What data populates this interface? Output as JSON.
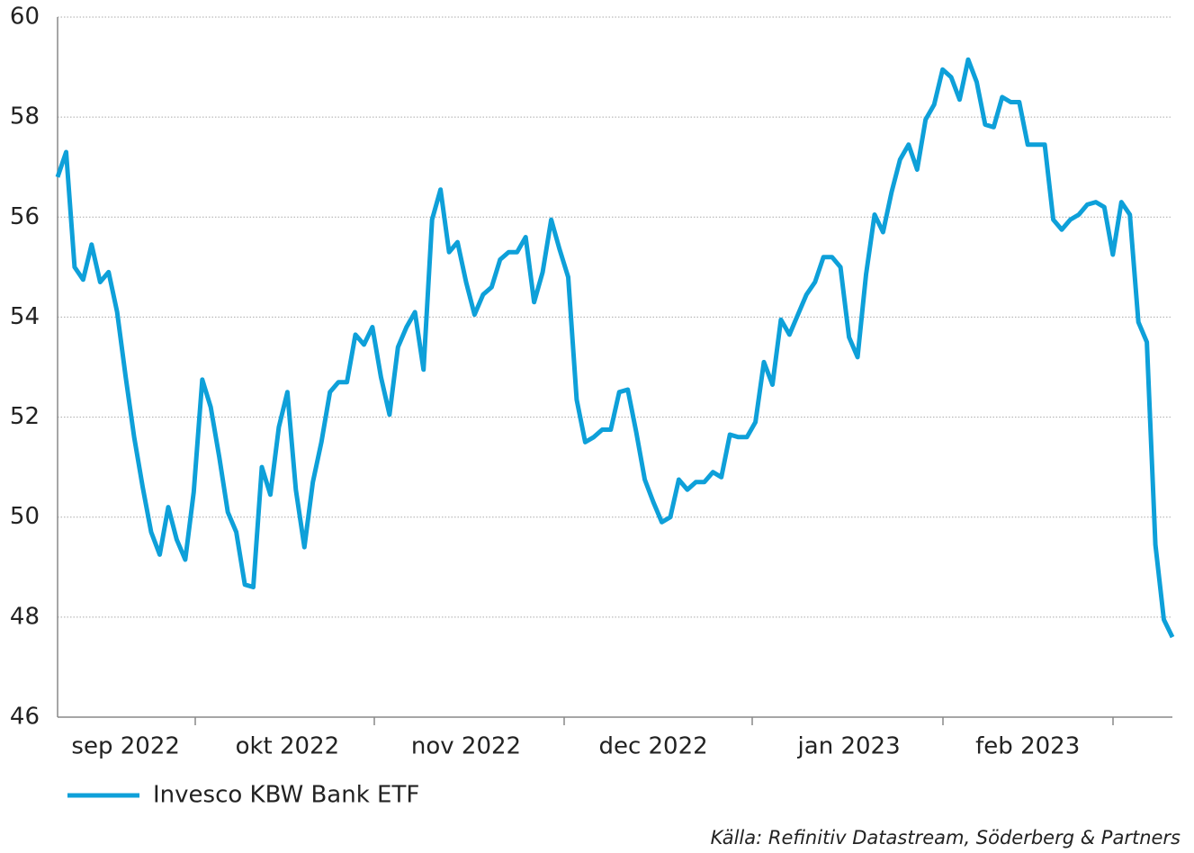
{
  "chart_data": {
    "type": "line",
    "categories": [
      null,
      null,
      null,
      null,
      null,
      null,
      null,
      null,
      "sep 2022",
      null,
      null,
      null,
      null,
      null,
      null,
      null,
      null,
      null,
      null,
      null,
      null,
      null,
      null,
      null,
      null,
      null,
      null,
      "okt 2022",
      null,
      null,
      null,
      null,
      null,
      null,
      null,
      null,
      null,
      null,
      null,
      null,
      null,
      null,
      null,
      null,
      null,
      null,
      null,
      null,
      "nov 2022",
      null,
      null,
      null,
      null,
      null,
      null,
      null,
      null,
      null,
      null,
      null,
      null,
      null,
      null,
      null,
      null,
      null,
      null,
      null,
      null,
      null,
      "dec 2022",
      null,
      null,
      null,
      null,
      null,
      null,
      null,
      null,
      null,
      null,
      null,
      null,
      null,
      null,
      null,
      null,
      null,
      null,
      null,
      null,
      null,
      null,
      "jan 2023",
      null,
      null,
      null,
      null,
      null,
      null,
      null,
      null,
      null,
      null,
      null,
      null,
      null,
      null,
      null,
      null,
      null,
      null,
      null,
      null,
      "feb 2023",
      null,
      null,
      null,
      null,
      null,
      null,
      null,
      null,
      null,
      null,
      null,
      null,
      null,
      null,
      null,
      null,
      null
    ],
    "series": [
      {
        "name": "Invesco KBW Bank ETF",
        "color": "#0ea0d9",
        "values": [
          56.8,
          57.3,
          55.0,
          54.75,
          55.45,
          54.7,
          54.9,
          54.1,
          52.8,
          51.6,
          50.6,
          49.7,
          49.25,
          50.2,
          49.55,
          49.15,
          50.5,
          52.75,
          52.2,
          51.2,
          50.1,
          49.7,
          48.65,
          48.6,
          51.0,
          50.45,
          51.8,
          52.5,
          50.55,
          49.4,
          50.7,
          51.5,
          52.5,
          52.7,
          52.7,
          53.65,
          53.45,
          53.8,
          52.8,
          52.05,
          53.4,
          53.8,
          54.1,
          52.95,
          55.95,
          56.55,
          55.3,
          55.5,
          54.7,
          54.05,
          54.45,
          54.6,
          55.15,
          55.3,
          55.3,
          55.6,
          54.3,
          54.9,
          55.95,
          55.35,
          54.8,
          52.35,
          51.5,
          51.6,
          51.75,
          51.75,
          52.5,
          52.55,
          51.7,
          50.75,
          50.3,
          49.9,
          50.0,
          50.75,
          50.55,
          50.7,
          50.7,
          50.9,
          50.8,
          51.65,
          51.6,
          51.6,
          51.9,
          53.1,
          52.65,
          53.95,
          53.65,
          54.05,
          54.45,
          54.7,
          55.2,
          55.2,
          55.0,
          53.6,
          53.2,
          54.85,
          56.05,
          55.7,
          56.5,
          57.15,
          57.45,
          56.95,
          57.95,
          58.25,
          58.95,
          58.8,
          58.35,
          59.15,
          58.7,
          57.85,
          57.8,
          58.4,
          58.3,
          58.3,
          57.45,
          57.45,
          57.45,
          55.95,
          55.75,
          55.95,
          56.05,
          56.25,
          56.3,
          56.2,
          55.25,
          56.3,
          56.05,
          53.9,
          53.5,
          49.45,
          47.95,
          47.6
        ]
      }
    ],
    "ylim": [
      46,
      60
    ],
    "yticks": [
      46,
      48,
      50,
      52,
      54,
      56,
      58,
      60
    ],
    "grid": true,
    "source": "Källa: Refinitiv Datastream, Söderberg & Partners"
  }
}
